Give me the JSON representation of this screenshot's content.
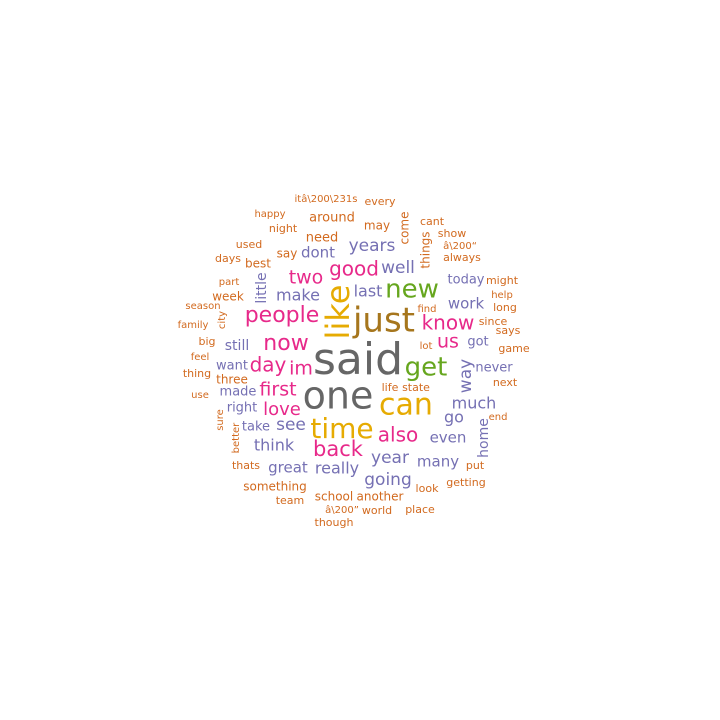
{
  "colors": {
    "background": "#ffffff",
    "palette": {
      "orange": "#D26A1F",
      "purple": "#7570B3",
      "pink": "#E7298A",
      "green": "#66A61E",
      "gold": "#E6AB02",
      "brown": "#A6761D",
      "gray": "#666666"
    }
  },
  "chart_data": {
    "type": "wordcloud",
    "title": "",
    "size_legend": "font size reflects word frequency",
    "words": [
      {
        "text": "said",
        "weight": 100,
        "color": "gray"
      },
      {
        "text": "one",
        "weight": 92,
        "color": "gray"
      },
      {
        "text": "just",
        "weight": 82,
        "color": "brown"
      },
      {
        "text": "like",
        "weight": 74,
        "color": "gold"
      },
      {
        "text": "can",
        "weight": 70,
        "color": "gold"
      },
      {
        "text": "time",
        "weight": 66,
        "color": "gold"
      },
      {
        "text": "get",
        "weight": 60,
        "color": "green"
      },
      {
        "text": "new",
        "weight": 56,
        "color": "green"
      },
      {
        "text": "people",
        "weight": 52,
        "color": "pink"
      },
      {
        "text": "now",
        "weight": 50,
        "color": "pink"
      },
      {
        "text": "back",
        "weight": 48,
        "color": "pink"
      },
      {
        "text": "also",
        "weight": 46,
        "color": "pink"
      },
      {
        "text": "good",
        "weight": 45,
        "color": "pink"
      },
      {
        "text": "know",
        "weight": 44,
        "color": "pink"
      },
      {
        "text": "day",
        "weight": 43,
        "color": "pink"
      },
      {
        "text": "first",
        "weight": 42,
        "color": "pink"
      },
      {
        "text": "two",
        "weight": 42,
        "color": "pink"
      },
      {
        "text": "us",
        "weight": 42,
        "color": "pink"
      },
      {
        "text": "love",
        "weight": 40,
        "color": "pink"
      },
      {
        "text": "im",
        "weight": 40,
        "color": "pink"
      },
      {
        "text": "going",
        "weight": 38,
        "color": "purple"
      },
      {
        "text": "year",
        "weight": 38,
        "color": "purple"
      },
      {
        "text": "way",
        "weight": 37,
        "color": "purple"
      },
      {
        "text": "years",
        "weight": 37,
        "color": "purple"
      },
      {
        "text": "well",
        "weight": 37,
        "color": "purple"
      },
      {
        "text": "much",
        "weight": 36,
        "color": "purple"
      },
      {
        "text": "see",
        "weight": 36,
        "color": "purple"
      },
      {
        "text": "make",
        "weight": 36,
        "color": "purple"
      },
      {
        "text": "last",
        "weight": 36,
        "color": "purple"
      },
      {
        "text": "really",
        "weight": 35,
        "color": "purple"
      },
      {
        "text": "think",
        "weight": 35,
        "color": "purple"
      },
      {
        "text": "go",
        "weight": 35,
        "color": "purple"
      },
      {
        "text": "even",
        "weight": 34,
        "color": "purple"
      },
      {
        "text": "many",
        "weight": 34,
        "color": "purple"
      },
      {
        "text": "work",
        "weight": 34,
        "color": "purple"
      },
      {
        "text": "great",
        "weight": 33,
        "color": "purple"
      },
      {
        "text": "dont",
        "weight": 33,
        "color": "purple"
      },
      {
        "text": "still",
        "weight": 32,
        "color": "purple"
      },
      {
        "text": "home",
        "weight": 32,
        "color": "purple"
      },
      {
        "text": "little",
        "weight": 31,
        "color": "purple"
      },
      {
        "text": "today",
        "weight": 30,
        "color": "purple"
      },
      {
        "text": "never",
        "weight": 30,
        "color": "purple"
      },
      {
        "text": "got",
        "weight": 30,
        "color": "purple"
      },
      {
        "text": "right",
        "weight": 30,
        "color": "purple"
      },
      {
        "text": "made",
        "weight": 30,
        "color": "purple"
      },
      {
        "text": "want",
        "weight": 30,
        "color": "purple"
      },
      {
        "text": "take",
        "weight": 30,
        "color": "purple"
      },
      {
        "text": "need",
        "weight": 28,
        "color": "orange"
      },
      {
        "text": "around",
        "weight": 28,
        "color": "orange"
      },
      {
        "text": "things",
        "weight": 27,
        "color": "orange"
      },
      {
        "text": "something",
        "weight": 27,
        "color": "orange"
      },
      {
        "text": "another",
        "weight": 27,
        "color": "orange"
      },
      {
        "text": "school",
        "weight": 27,
        "color": "orange"
      },
      {
        "text": "say",
        "weight": 26,
        "color": "orange"
      },
      {
        "text": "may",
        "weight": 26,
        "color": "orange"
      },
      {
        "text": "come",
        "weight": 26,
        "color": "orange"
      },
      {
        "text": "best",
        "weight": 26,
        "color": "orange"
      },
      {
        "text": "week",
        "weight": 25,
        "color": "orange"
      },
      {
        "text": "three",
        "weight": 25,
        "color": "orange"
      },
      {
        "text": "life",
        "weight": 25,
        "color": "orange"
      },
      {
        "text": "state",
        "weight": 25,
        "color": "orange"
      },
      {
        "text": "long",
        "weight": 25,
        "color": "orange"
      },
      {
        "text": "since",
        "weight": 25,
        "color": "orange"
      },
      {
        "text": "says",
        "weight": 24,
        "color": "orange"
      },
      {
        "text": "game",
        "weight": 24,
        "color": "orange"
      },
      {
        "text": "next",
        "weight": 24,
        "color": "orange"
      },
      {
        "text": "every",
        "weight": 24,
        "color": "orange"
      },
      {
        "text": "night",
        "weight": 24,
        "color": "orange"
      },
      {
        "text": "always",
        "weight": 24,
        "color": "orange"
      },
      {
        "text": "show",
        "weight": 24,
        "color": "orange"
      },
      {
        "text": "look",
        "weight": 24,
        "color": "orange"
      },
      {
        "text": "world",
        "weight": 24,
        "color": "orange"
      },
      {
        "text": "place",
        "weight": 24,
        "color": "orange"
      },
      {
        "text": "itâ\\200\\231s",
        "weight": 23,
        "color": "orange"
      },
      {
        "text": "â\\200”",
        "weight": 23,
        "color": "orange"
      },
      {
        "text": "â\\200“",
        "weight": 23,
        "color": "orange"
      },
      {
        "text": "thats",
        "weight": 23,
        "color": "orange"
      },
      {
        "text": "better",
        "weight": 23,
        "color": "orange"
      },
      {
        "text": "sure",
        "weight": 23,
        "color": "orange"
      },
      {
        "text": "team",
        "weight": 23,
        "color": "orange"
      },
      {
        "text": "though",
        "weight": 23,
        "color": "orange"
      },
      {
        "text": "getting",
        "weight": 23,
        "color": "orange"
      },
      {
        "text": "put",
        "weight": 23,
        "color": "orange"
      },
      {
        "text": "end",
        "weight": 23,
        "color": "orange"
      },
      {
        "text": "help",
        "weight": 23,
        "color": "orange"
      },
      {
        "text": "might",
        "weight": 23,
        "color": "orange"
      },
      {
        "text": "lot",
        "weight": 23,
        "color": "orange"
      },
      {
        "text": "find",
        "weight": 23,
        "color": "orange"
      },
      {
        "text": "cant",
        "weight": 23,
        "color": "orange"
      },
      {
        "text": "happy",
        "weight": 23,
        "color": "orange"
      },
      {
        "text": "used",
        "weight": 23,
        "color": "orange"
      },
      {
        "text": "days",
        "weight": 23,
        "color": "orange"
      },
      {
        "text": "part",
        "weight": 23,
        "color": "orange"
      },
      {
        "text": "season",
        "weight": 22,
        "color": "orange"
      },
      {
        "text": "family",
        "weight": 22,
        "color": "orange"
      },
      {
        "text": "big",
        "weight": 22,
        "color": "orange"
      },
      {
        "text": "feel",
        "weight": 22,
        "color": "orange"
      },
      {
        "text": "thing",
        "weight": 22,
        "color": "orange"
      },
      {
        "text": "use",
        "weight": 22,
        "color": "orange"
      },
      {
        "text": "city",
        "weight": 22,
        "color": "orange"
      }
    ]
  }
}
